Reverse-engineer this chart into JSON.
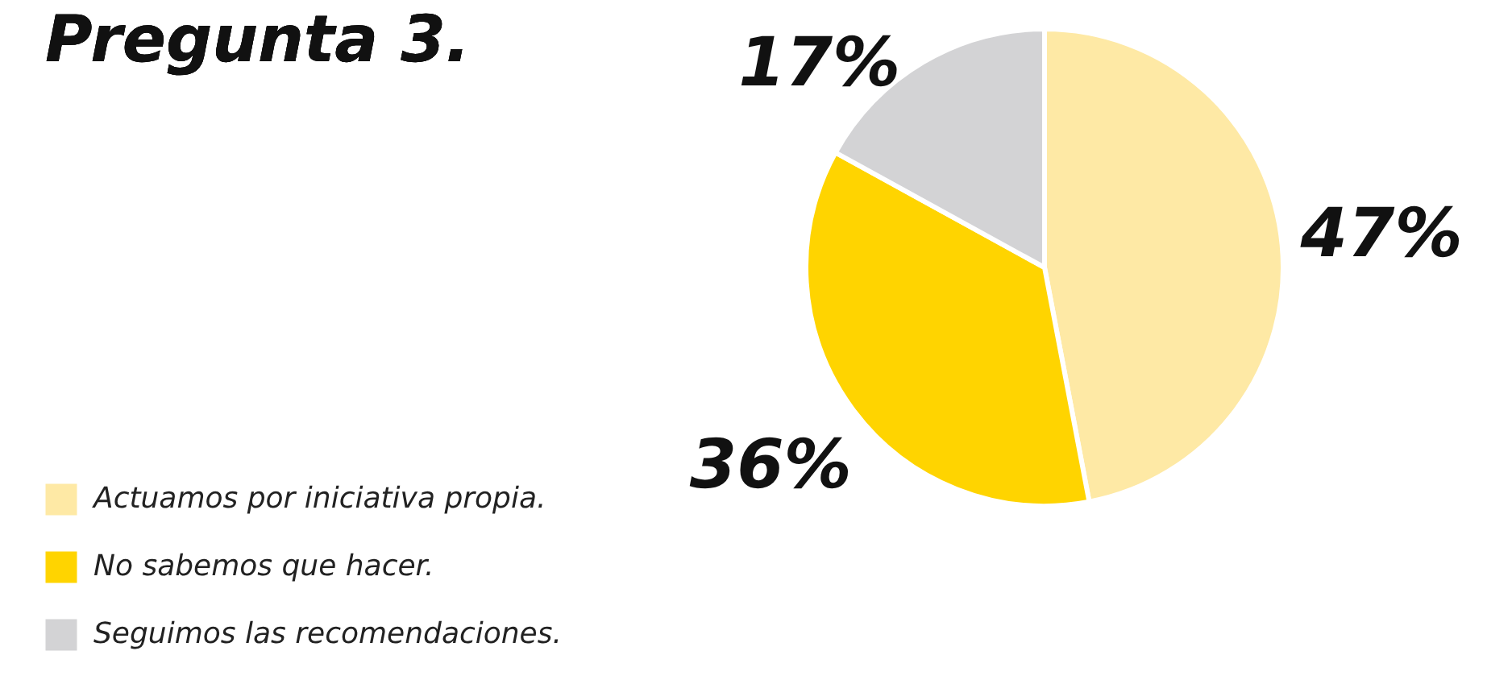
{
  "chart_data": {
    "type": "pie",
    "title": "Pregunta 3.",
    "categories": [
      "Actuamos por iniciativa propia.",
      "No sabemos que hacer.",
      "Seguimos las recomendaciones."
    ],
    "values": [
      47,
      36,
      17
    ],
    "value_labels": [
      "47%",
      "36%",
      "17%"
    ],
    "colors": [
      "#fee9a5",
      "#ffd400",
      "#d3d3d5"
    ],
    "legend": "bottom left"
  }
}
